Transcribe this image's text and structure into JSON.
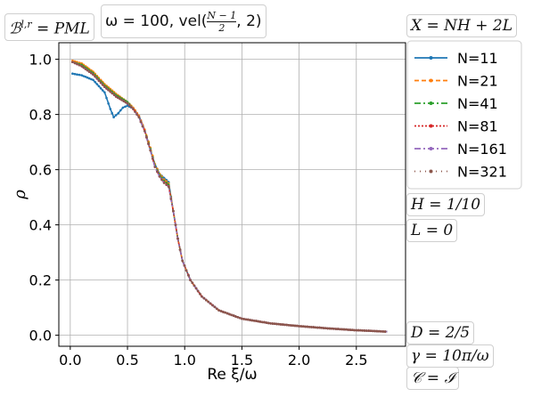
{
  "annotations": {
    "bc": "ℬ^{l,r} = PML",
    "bc_main": "ℬ",
    "bc_sup": "l,r",
    "bc_rest": " = PML",
    "omega": "ω = 100, vel(",
    "frac_num": "N − 1",
    "frac_den": "2",
    "omega_tail": ", 2)",
    "X": "X = NH + 2L",
    "H": "H = 1/10",
    "L": "L = 0",
    "D": "D = 2/5",
    "gamma": "γ = 10π/ω",
    "C": "𝒞 = ℐ"
  },
  "chart_data": {
    "type": "line",
    "xlabel": "Re ξ/ω",
    "ylabel": "ρ",
    "xlim": [
      -0.1,
      2.93
    ],
    "ylim": [
      -0.04,
      1.06
    ],
    "xticks": [
      "0.0",
      "0.5",
      "1.0",
      "1.5",
      "2.0",
      "2.5"
    ],
    "xtick_values": [
      0.0,
      0.5,
      1.0,
      1.5,
      2.0,
      2.5
    ],
    "yticks": [
      "0.0",
      "0.2",
      "0.4",
      "0.6",
      "0.8",
      "1.0"
    ],
    "ytick_values": [
      0.0,
      0.2,
      0.4,
      0.6,
      0.8,
      1.0
    ],
    "grid": true,
    "legend_position": "right",
    "series": [
      {
        "name": "N=11",
        "color": "#1f77b4",
        "dash": "none",
        "marker": "dot",
        "points": [
          [
            0.02,
            0.948
          ],
          [
            0.1,
            0.942
          ],
          [
            0.2,
            0.925
          ],
          [
            0.3,
            0.88
          ],
          [
            0.35,
            0.82
          ],
          [
            0.38,
            0.79
          ],
          [
            0.42,
            0.805
          ],
          [
            0.46,
            0.825
          ],
          [
            0.5,
            0.832
          ],
          [
            0.55,
            0.822
          ],
          [
            0.6,
            0.795
          ],
          [
            0.65,
            0.745
          ],
          [
            0.7,
            0.67
          ],
          [
            0.74,
            0.62
          ],
          [
            0.78,
            0.585
          ],
          [
            0.82,
            0.57
          ],
          [
            0.86,
            0.555
          ],
          [
            0.9,
            0.45
          ],
          [
            0.94,
            0.35
          ],
          [
            0.98,
            0.27
          ],
          [
            1.05,
            0.2
          ],
          [
            1.15,
            0.14
          ],
          [
            1.3,
            0.09
          ],
          [
            1.5,
            0.06
          ],
          [
            1.75,
            0.043
          ],
          [
            2.0,
            0.033
          ],
          [
            2.25,
            0.025
          ],
          [
            2.5,
            0.018
          ],
          [
            2.77,
            0.013
          ]
        ]
      },
      {
        "name": "N=21",
        "color": "#ff7f0e",
        "dash": "5,3",
        "marker": "dot",
        "points": [
          [
            0.02,
            0.995
          ],
          [
            0.1,
            0.985
          ],
          [
            0.2,
            0.955
          ],
          [
            0.3,
            0.91
          ],
          [
            0.4,
            0.875
          ],
          [
            0.5,
            0.845
          ],
          [
            0.55,
            0.825
          ],
          [
            0.6,
            0.795
          ],
          [
            0.65,
            0.745
          ],
          [
            0.7,
            0.68
          ],
          [
            0.74,
            0.62
          ],
          [
            0.78,
            0.585
          ],
          [
            0.82,
            0.565
          ],
          [
            0.86,
            0.55
          ],
          [
            0.9,
            0.45
          ],
          [
            0.94,
            0.35
          ],
          [
            0.98,
            0.27
          ],
          [
            1.05,
            0.2
          ],
          [
            1.15,
            0.14
          ],
          [
            1.3,
            0.09
          ],
          [
            1.5,
            0.06
          ],
          [
            1.75,
            0.043
          ],
          [
            2.0,
            0.033
          ],
          [
            2.25,
            0.025
          ],
          [
            2.5,
            0.018
          ],
          [
            2.77,
            0.013
          ]
        ]
      },
      {
        "name": "N=41",
        "color": "#2ca02c",
        "dash": "7,3,2,3",
        "marker": "dot",
        "points": [
          [
            0.02,
            0.99
          ],
          [
            0.1,
            0.98
          ],
          [
            0.2,
            0.95
          ],
          [
            0.3,
            0.905
          ],
          [
            0.4,
            0.87
          ],
          [
            0.5,
            0.845
          ],
          [
            0.55,
            0.82
          ],
          [
            0.6,
            0.79
          ],
          [
            0.65,
            0.74
          ],
          [
            0.7,
            0.675
          ],
          [
            0.74,
            0.615
          ],
          [
            0.78,
            0.58
          ],
          [
            0.82,
            0.56
          ],
          [
            0.86,
            0.545
          ],
          [
            0.9,
            0.45
          ],
          [
            0.94,
            0.35
          ],
          [
            0.98,
            0.27
          ],
          [
            1.05,
            0.2
          ],
          [
            1.15,
            0.14
          ],
          [
            1.3,
            0.09
          ],
          [
            1.5,
            0.06
          ],
          [
            1.75,
            0.043
          ],
          [
            2.0,
            0.033
          ],
          [
            2.25,
            0.025
          ],
          [
            2.5,
            0.018
          ],
          [
            2.77,
            0.013
          ]
        ]
      },
      {
        "name": "N=81",
        "color": "#d62728",
        "dash": "2,2",
        "marker": "dot",
        "points": [
          [
            0.02,
            0.99
          ],
          [
            0.1,
            0.975
          ],
          [
            0.2,
            0.945
          ],
          [
            0.3,
            0.9
          ],
          [
            0.4,
            0.865
          ],
          [
            0.5,
            0.84
          ],
          [
            0.55,
            0.82
          ],
          [
            0.6,
            0.79
          ],
          [
            0.65,
            0.74
          ],
          [
            0.7,
            0.67
          ],
          [
            0.74,
            0.61
          ],
          [
            0.78,
            0.575
          ],
          [
            0.82,
            0.555
          ],
          [
            0.86,
            0.54
          ],
          [
            0.9,
            0.45
          ],
          [
            0.94,
            0.35
          ],
          [
            0.98,
            0.27
          ],
          [
            1.05,
            0.2
          ],
          [
            1.15,
            0.14
          ],
          [
            1.3,
            0.09
          ],
          [
            1.5,
            0.06
          ],
          [
            1.75,
            0.043
          ],
          [
            2.0,
            0.033
          ],
          [
            2.25,
            0.025
          ],
          [
            2.5,
            0.018
          ],
          [
            2.77,
            0.013
          ]
        ]
      },
      {
        "name": "N=161",
        "color": "#9467bd",
        "dash": "7,3,2,3",
        "marker": "dot",
        "points": [
          [
            0.02,
            0.99
          ],
          [
            0.1,
            0.975
          ],
          [
            0.2,
            0.945
          ],
          [
            0.3,
            0.9
          ],
          [
            0.4,
            0.865
          ],
          [
            0.5,
            0.84
          ],
          [
            0.55,
            0.82
          ],
          [
            0.6,
            0.79
          ],
          [
            0.65,
            0.74
          ],
          [
            0.7,
            0.67
          ],
          [
            0.74,
            0.61
          ],
          [
            0.78,
            0.575
          ],
          [
            0.82,
            0.552
          ],
          [
            0.86,
            0.538
          ],
          [
            0.9,
            0.45
          ],
          [
            0.94,
            0.35
          ],
          [
            0.98,
            0.27
          ],
          [
            1.05,
            0.2
          ],
          [
            1.15,
            0.14
          ],
          [
            1.3,
            0.09
          ],
          [
            1.5,
            0.06
          ],
          [
            1.75,
            0.043
          ],
          [
            2.0,
            0.033
          ],
          [
            2.25,
            0.025
          ],
          [
            2.5,
            0.018
          ],
          [
            2.77,
            0.013
          ]
        ]
      },
      {
        "name": "N=321",
        "color": "#8c564b",
        "dash": "1,5",
        "marker": "dot",
        "points": [
          [
            0.02,
            0.99
          ],
          [
            0.1,
            0.975
          ],
          [
            0.2,
            0.945
          ],
          [
            0.3,
            0.9
          ],
          [
            0.4,
            0.865
          ],
          [
            0.5,
            0.84
          ],
          [
            0.55,
            0.82
          ],
          [
            0.6,
            0.79
          ],
          [
            0.65,
            0.74
          ],
          [
            0.7,
            0.67
          ],
          [
            0.74,
            0.61
          ],
          [
            0.78,
            0.575
          ],
          [
            0.82,
            0.552
          ],
          [
            0.86,
            0.538
          ],
          [
            0.9,
            0.45
          ],
          [
            0.94,
            0.35
          ],
          [
            0.98,
            0.27
          ],
          [
            1.05,
            0.2
          ],
          [
            1.15,
            0.14
          ],
          [
            1.3,
            0.09
          ],
          [
            1.5,
            0.06
          ],
          [
            1.75,
            0.043
          ],
          [
            2.0,
            0.033
          ],
          [
            2.25,
            0.025
          ],
          [
            2.5,
            0.018
          ],
          [
            2.77,
            0.013
          ]
        ]
      }
    ]
  }
}
